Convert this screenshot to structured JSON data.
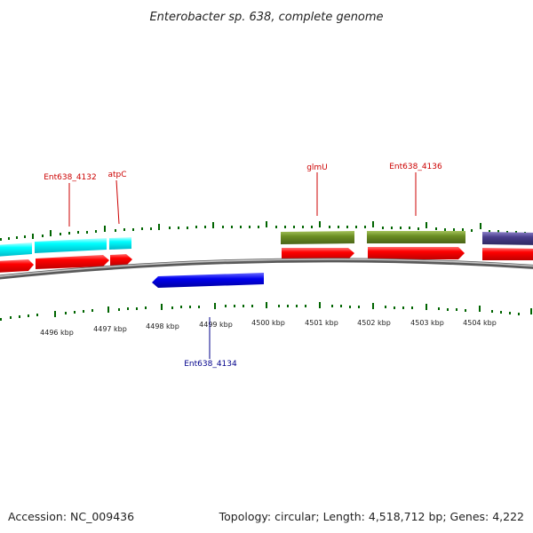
{
  "title": "Enterobacter sp. 638, complete genome",
  "footer": {
    "accession": "Accession: NC_009436",
    "summary": "Topology: circular; Length: 4,518,712 bp; Genes: 4,222"
  },
  "scale": {
    "labels": [
      "4496 kbp",
      "4497 kbp",
      "4498 kbp",
      "4499 kbp",
      "4500 kbp",
      "4501 kbp",
      "4502 kbp",
      "4503 kbp",
      "4504 kbp"
    ]
  },
  "gene_labels": [
    {
      "name": "Ent638_4132",
      "strand": "forward"
    },
    {
      "name": "atpC",
      "strand": "forward"
    },
    {
      "name": "glmU",
      "strand": "forward"
    },
    {
      "name": "Ent638_4136",
      "strand": "forward"
    },
    {
      "name": "Ent638_4134",
      "strand": "reverse"
    }
  ],
  "colors": {
    "cds": "#ff0000",
    "gene_fwd": "#cc0000",
    "gene_rev": "#00008b",
    "reverse_feature": "#0000ee",
    "cyan_feature": "#00ffff",
    "olive_feature": "#6b8e23",
    "purple_feature": "#483d8b",
    "tick": "#006400",
    "backbone": "#808080"
  }
}
